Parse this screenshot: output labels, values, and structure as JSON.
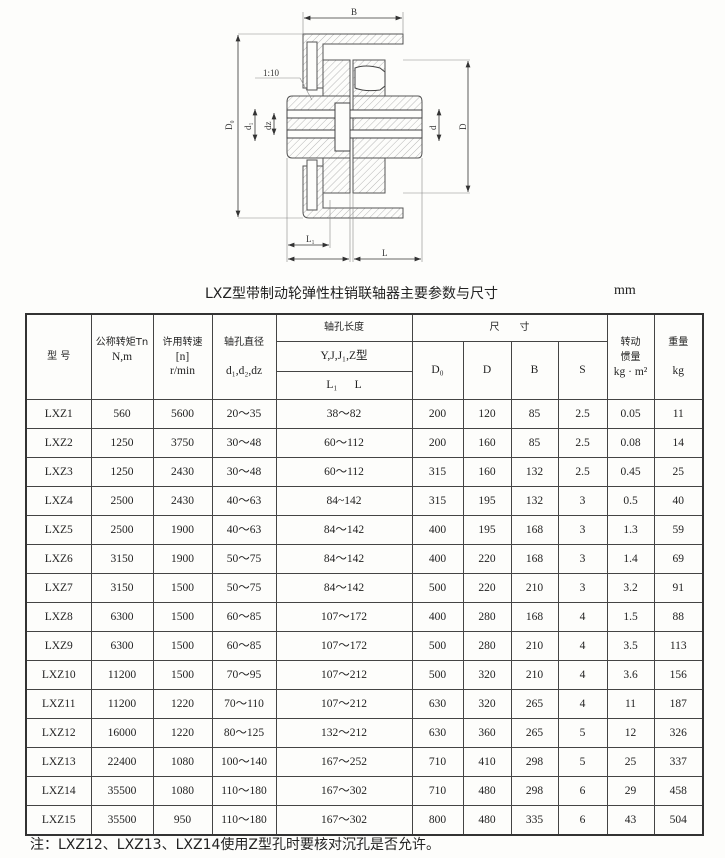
{
  "drawing": {
    "labels": {
      "B": "B",
      "D0": "D₀",
      "d1": "d₁",
      "dz": "dz",
      "d": "d",
      "D": "D",
      "L1": "L₁",
      "L": "L",
      "taper": "1:10"
    }
  },
  "title": "LXZ型带制动轮弹性柱销联轴器主要参数与尺寸",
  "unit": "mm",
  "table": {
    "headers": {
      "model": "型 号",
      "torque": "公称转矩Tn",
      "torque_unit": "N,m",
      "speed": "许用转速",
      "speed_n": "[n]",
      "speed_unit": "r/min",
      "bore_dia": "轴孔直径",
      "bore_dia_sym": "d₁,d₂,dz",
      "bore_len": "轴孔长度",
      "bore_types": "Y,J,J₁,Z型",
      "bore_len_sym": "L₁      L",
      "dims": "尺　　寸",
      "D0": "D₀",
      "D": "D",
      "B": "B",
      "S": "S",
      "inertia": "转动",
      "inertia2": "惯量",
      "inertia_unit": "kg · m²",
      "weight": "重量",
      "weight_unit": "kg"
    },
    "rows": [
      [
        "LXZ1",
        "560",
        "5600",
        "20～35",
        "38～82",
        "200",
        "120",
        "85",
        "2.5",
        "0.05",
        "11"
      ],
      [
        "LXZ2",
        "1250",
        "3750",
        "30～48",
        "60～112",
        "200",
        "160",
        "85",
        "2.5",
        "0.08",
        "14"
      ],
      [
        "LXZ3",
        "1250",
        "2430",
        "30～48",
        "60～112",
        "315",
        "160",
        "132",
        "2.5",
        "0.45",
        "25"
      ],
      [
        "LXZ4",
        "2500",
        "2430",
        "40～63",
        "84~142",
        "315",
        "195",
        "132",
        "3",
        "0.5",
        "40"
      ],
      [
        "LXZ5",
        "2500",
        "1900",
        "40～63",
        "84～142",
        "400",
        "195",
        "168",
        "3",
        "1.3",
        "59"
      ],
      [
        "LXZ6",
        "3150",
        "1900",
        "50～75",
        "84～142",
        "400",
        "220",
        "168",
        "3",
        "1.4",
        "69"
      ],
      [
        "LXZ7",
        "3150",
        "1500",
        "50～75",
        "84～142",
        "500",
        "220",
        "210",
        "3",
        "3.2",
        "91"
      ],
      [
        "LXZ8",
        "6300",
        "1500",
        "60～85",
        "107～172",
        "400",
        "280",
        "168",
        "4",
        "1.5",
        "88"
      ],
      [
        "LXZ9",
        "6300",
        "1500",
        "60～85",
        "107～172",
        "500",
        "280",
        "210",
        "4",
        "3.5",
        "113"
      ],
      [
        "LXZ10",
        "11200",
        "1500",
        "70～95",
        "107～212",
        "500",
        "320",
        "210",
        "4",
        "3.6",
        "156"
      ],
      [
        "LXZ11",
        "11200",
        "1220",
        "70～110",
        "107～212",
        "630",
        "320",
        "265",
        "4",
        "11",
        "187"
      ],
      [
        "LXZ12",
        "16000",
        "1220",
        "80～125",
        "132～212",
        "630",
        "360",
        "265",
        "5",
        "12",
        "326"
      ],
      [
        "LXZ13",
        "22400",
        "1080",
        "100～140",
        "167～252",
        "710",
        "410",
        "298",
        "5",
        "25",
        "337"
      ],
      [
        "LXZ14",
        "35500",
        "1080",
        "110～180",
        "167～302",
        "710",
        "480",
        "298",
        "6",
        "29",
        "458"
      ],
      [
        "LXZ15",
        "35500",
        "950",
        "110～180",
        "167～302",
        "800",
        "480",
        "335",
        "6",
        "43",
        "504"
      ]
    ]
  },
  "note": "注：LXZ12、LXZ13、LXZ14使用Z型孔时要核对沉孔是否允许。"
}
